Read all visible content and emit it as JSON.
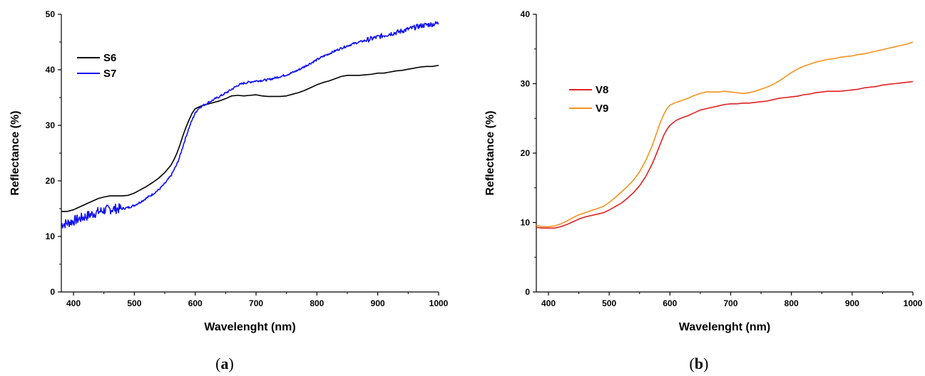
{
  "panels": [
    {
      "label_open": "(",
      "label_letter": "a",
      "label_close": ")"
    },
    {
      "label_open": "(",
      "label_letter": "b",
      "label_close": ")"
    }
  ],
  "chart_data": [
    {
      "type": "line",
      "xlabel": "Wavelenght (nm)",
      "ylabel": "Reflectance (%)",
      "xlim": [
        380,
        1000
      ],
      "ylim": [
        0,
        50
      ],
      "xticks": [
        400,
        500,
        600,
        700,
        800,
        900,
        1000
      ],
      "yticks": [
        0,
        10,
        20,
        30,
        40,
        50
      ],
      "legend_position": "top-left",
      "grid": false,
      "series": [
        {
          "name": "S6",
          "color": "#000000",
          "noisy": false,
          "x": [
            380,
            390,
            400,
            410,
            420,
            430,
            440,
            450,
            460,
            470,
            480,
            490,
            500,
            510,
            520,
            530,
            540,
            550,
            560,
            565,
            570,
            575,
            580,
            585,
            590,
            595,
            600,
            610,
            620,
            630,
            640,
            650,
            660,
            670,
            680,
            690,
            700,
            710,
            720,
            730,
            740,
            750,
            760,
            770,
            780,
            790,
            800,
            810,
            820,
            830,
            840,
            850,
            860,
            870,
            880,
            890,
            900,
            910,
            920,
            930,
            940,
            950,
            960,
            970,
            980,
            990,
            1000
          ],
          "y": [
            14.5,
            14.5,
            14.8,
            15.3,
            15.8,
            16.3,
            16.8,
            17.1,
            17.3,
            17.3,
            17.3,
            17.4,
            17.8,
            18.4,
            19.0,
            19.7,
            20.5,
            21.5,
            22.8,
            23.8,
            25.0,
            26.5,
            28.2,
            29.7,
            31.0,
            32.2,
            33.0,
            33.5,
            33.8,
            34.1,
            34.4,
            34.8,
            35.3,
            35.4,
            35.3,
            35.4,
            35.5,
            35.3,
            35.2,
            35.2,
            35.2,
            35.3,
            35.6,
            35.9,
            36.3,
            36.8,
            37.3,
            37.7,
            38.0,
            38.4,
            38.8,
            39.0,
            39.0,
            39.0,
            39.1,
            39.2,
            39.4,
            39.4,
            39.6,
            39.8,
            39.9,
            40.1,
            40.3,
            40.5,
            40.6,
            40.6,
            40.8
          ]
        },
        {
          "name": "S7",
          "color": "#1010ee",
          "noisy": true,
          "x": [
            380,
            390,
            400,
            410,
            420,
            430,
            440,
            450,
            460,
            470,
            480,
            490,
            500,
            510,
            520,
            530,
            540,
            550,
            560,
            570,
            575,
            580,
            585,
            590,
            595,
            600,
            605,
            610,
            620,
            630,
            640,
            650,
            660,
            670,
            680,
            690,
            700,
            710,
            720,
            730,
            740,
            750,
            760,
            770,
            780,
            790,
            800,
            810,
            820,
            830,
            840,
            850,
            860,
            870,
            880,
            890,
            900,
            910,
            920,
            930,
            940,
            950,
            960,
            970,
            980,
            990,
            1000
          ],
          "y": [
            12.2,
            12.4,
            12.8,
            13.2,
            13.6,
            14.0,
            14.4,
            14.7,
            14.9,
            15.0,
            15.0,
            15.2,
            15.6,
            16.2,
            16.9,
            17.6,
            18.4,
            19.5,
            20.9,
            23.0,
            24.5,
            26.3,
            28.0,
            29.6,
            31.0,
            32.2,
            33.0,
            33.4,
            34.0,
            34.6,
            35.2,
            35.8,
            36.5,
            37.2,
            37.6,
            37.8,
            38.0,
            38.1,
            38.2,
            38.5,
            38.8,
            39.1,
            39.5,
            40.0,
            40.6,
            41.2,
            41.8,
            42.4,
            42.9,
            43.4,
            43.9,
            44.3,
            44.7,
            45.0,
            45.3,
            45.6,
            45.9,
            46.2,
            46.5,
            46.7,
            47.0,
            47.3,
            47.6,
            47.9,
            48.1,
            48.2,
            48.4
          ]
        }
      ]
    },
    {
      "type": "line",
      "xlabel": "Wavelenght (nm)",
      "ylabel": "Reflectance (%)",
      "xlim": [
        380,
        1000
      ],
      "ylim": [
        0,
        40
      ],
      "xticks": [
        400,
        500,
        600,
        700,
        800,
        900,
        1000
      ],
      "yticks": [
        0,
        10,
        20,
        30,
        40
      ],
      "legend_position": "center-left",
      "grid": false,
      "series": [
        {
          "name": "V8",
          "color": "#e02020",
          "noisy": false,
          "x": [
            380,
            390,
            400,
            410,
            420,
            430,
            440,
            450,
            460,
            470,
            480,
            490,
            500,
            510,
            520,
            530,
            540,
            550,
            560,
            570,
            575,
            580,
            585,
            590,
            595,
            600,
            610,
            620,
            630,
            640,
            650,
            660,
            670,
            680,
            690,
            700,
            710,
            720,
            730,
            740,
            750,
            760,
            770,
            780,
            790,
            800,
            810,
            820,
            830,
            840,
            850,
            860,
            870,
            880,
            890,
            900,
            910,
            920,
            930,
            940,
            950,
            960,
            970,
            980,
            990,
            1000
          ],
          "y": [
            9.3,
            9.2,
            9.2,
            9.2,
            9.4,
            9.7,
            10.1,
            10.5,
            10.8,
            11.0,
            11.2,
            11.4,
            11.8,
            12.3,
            12.8,
            13.5,
            14.3,
            15.3,
            16.6,
            18.3,
            19.3,
            20.4,
            21.5,
            22.6,
            23.4,
            24.0,
            24.7,
            25.1,
            25.4,
            25.8,
            26.2,
            26.4,
            26.6,
            26.8,
            27.0,
            27.1,
            27.1,
            27.2,
            27.2,
            27.3,
            27.4,
            27.5,
            27.7,
            27.9,
            28.0,
            28.1,
            28.2,
            28.4,
            28.5,
            28.7,
            28.8,
            28.9,
            28.9,
            28.9,
            29.0,
            29.1,
            29.2,
            29.4,
            29.5,
            29.6,
            29.8,
            29.9,
            30.0,
            30.1,
            30.2,
            30.3
          ]
        },
        {
          "name": "V9",
          "color": "#f5921e",
          "noisy": false,
          "x": [
            380,
            390,
            400,
            410,
            420,
            430,
            440,
            450,
            460,
            470,
            480,
            490,
            500,
            510,
            520,
            530,
            540,
            550,
            560,
            570,
            575,
            580,
            585,
            590,
            595,
            600,
            610,
            620,
            630,
            640,
            650,
            660,
            670,
            680,
            690,
            700,
            710,
            720,
            730,
            740,
            750,
            760,
            770,
            780,
            790,
            800,
            810,
            820,
            830,
            840,
            850,
            860,
            870,
            880,
            890,
            900,
            910,
            920,
            930,
            940,
            950,
            960,
            970,
            980,
            990,
            1000
          ],
          "y": [
            9.6,
            9.4,
            9.4,
            9.5,
            9.8,
            10.2,
            10.7,
            11.1,
            11.4,
            11.7,
            12.0,
            12.3,
            12.9,
            13.6,
            14.4,
            15.2,
            16.1,
            17.3,
            18.9,
            20.9,
            22.1,
            23.4,
            24.6,
            25.6,
            26.4,
            26.9,
            27.3,
            27.6,
            27.9,
            28.3,
            28.6,
            28.8,
            28.8,
            28.8,
            28.9,
            28.8,
            28.7,
            28.6,
            28.7,
            28.9,
            29.2,
            29.5,
            29.9,
            30.4,
            31.0,
            31.6,
            32.1,
            32.5,
            32.8,
            33.1,
            33.3,
            33.5,
            33.6,
            33.8,
            33.9,
            34.0,
            34.2,
            34.3,
            34.5,
            34.7,
            34.9,
            35.1,
            35.3,
            35.5,
            35.7,
            36.0
          ]
        }
      ]
    }
  ]
}
